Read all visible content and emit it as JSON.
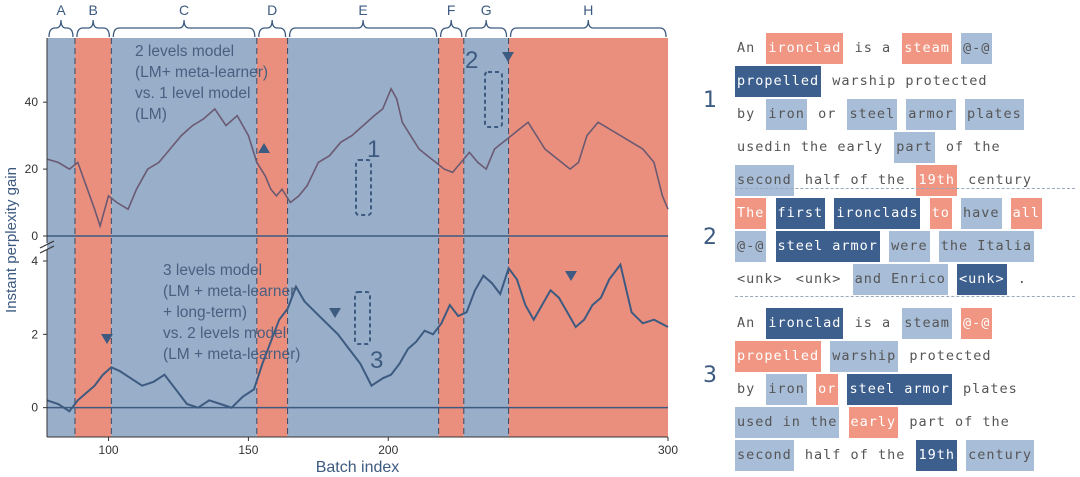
{
  "colors": {
    "blue_bg": "#98aec9",
    "red_bg": "#ea8f7e",
    "line": "#3d5a80",
    "text": "#4a5f80",
    "top_line": "#6b5a72"
  },
  "regions": [
    {
      "label": "A",
      "start": 78,
      "end": 88,
      "color": "blue"
    },
    {
      "label": "B",
      "start": 88,
      "end": 101,
      "color": "red"
    },
    {
      "label": "C",
      "start": 101,
      "end": 153,
      "color": "blue"
    },
    {
      "label": "D",
      "start": 153,
      "end": 164,
      "color": "red"
    },
    {
      "label": "E",
      "start": 164,
      "end": 218,
      "color": "blue"
    },
    {
      "label": "F",
      "start": 218,
      "end": 227,
      "color": "red"
    },
    {
      "label": "G",
      "start": 227,
      "end": 243,
      "color": "blue"
    },
    {
      "label": "H",
      "start": 243,
      "end": 300,
      "color": "red"
    }
  ],
  "annotations": {
    "top_text": [
      "2 levels model",
      "(LM+ meta-learner)",
      "vs. 1 level model",
      "(LM)"
    ],
    "bottom_text": [
      "3 levels model",
      "(LM + meta-learner",
      "+ long-term)",
      "vs. 2 levels model",
      "(LM + meta-learner)"
    ],
    "marker_1": "1",
    "marker_2": "2",
    "marker_3": "3"
  },
  "chart_data": {
    "type": "line",
    "xlabel": "Batch index",
    "ylabel": "Instant perplexity gain",
    "x_ticks": [
      "100",
      "150",
      "200",
      "300"
    ],
    "x_tick_values": [
      100,
      150,
      200,
      300
    ],
    "xlim": [
      78,
      300
    ],
    "top_y_ticks": [
      "0",
      "20",
      "40"
    ],
    "bottom_y_ticks": [
      "0",
      "2",
      "4"
    ],
    "series": [
      {
        "panel": "top",
        "ylim": [
          0,
          55
        ],
        "x": [
          78,
          82,
          86,
          89,
          92,
          95,
          97,
          100,
          103,
          107,
          110,
          114,
          118,
          122,
          126,
          130,
          134,
          138,
          142,
          146,
          150,
          153,
          156,
          158,
          160,
          162,
          165,
          168,
          171,
          175,
          179,
          183,
          187,
          191,
          195,
          198,
          201,
          203,
          205,
          208,
          211,
          214,
          217,
          220,
          223,
          226,
          229,
          232,
          235,
          238,
          241,
          244,
          247,
          250,
          253,
          256,
          259,
          262,
          265,
          268,
          271,
          275,
          279,
          283,
          287,
          291,
          295,
          298,
          300
        ],
        "y": [
          23,
          22,
          20,
          22,
          15,
          8,
          3,
          12,
          10,
          8,
          14,
          20,
          22,
          26,
          30,
          33,
          35,
          38,
          33,
          36,
          30,
          22,
          18,
          14,
          12,
          14,
          10,
          12,
          15,
          22,
          24,
          28,
          30,
          33,
          36,
          38,
          44,
          41,
          34,
          30,
          26,
          24,
          22,
          20,
          19,
          22,
          25,
          22,
          20,
          26,
          28,
          30,
          32,
          34,
          30,
          26,
          24,
          22,
          20,
          22,
          30,
          34,
          32,
          30,
          28,
          26,
          22,
          12,
          8
        ]
      },
      {
        "panel": "bottom",
        "ylim": [
          -0.8,
          4.3
        ],
        "x": [
          78,
          82,
          86,
          89,
          92,
          95,
          98,
          101,
          104,
          108,
          112,
          116,
          120,
          124,
          128,
          132,
          136,
          140,
          144,
          148,
          152,
          155,
          158,
          161,
          164,
          167,
          170,
          174,
          178,
          182,
          186,
          190,
          194,
          198,
          201,
          204,
          207,
          210,
          213,
          216,
          219,
          222,
          225,
          228,
          231,
          234,
          237,
          240,
          243,
          246,
          249,
          252,
          255,
          258,
          261,
          264,
          267,
          270,
          273,
          276,
          279,
          283,
          287,
          291,
          295,
          300
        ],
        "y": [
          0.2,
          0.1,
          -0.1,
          0.2,
          0.4,
          0.6,
          0.9,
          1.1,
          1.0,
          0.8,
          0.6,
          0.7,
          0.9,
          0.5,
          0.1,
          0.0,
          0.2,
          0.1,
          0.0,
          0.3,
          0.5,
          1.2,
          1.8,
          2.4,
          2.7,
          3.3,
          2.9,
          2.6,
          2.3,
          2.0,
          1.6,
          1.2,
          0.6,
          0.8,
          0.9,
          1.2,
          1.6,
          1.8,
          2.1,
          2.0,
          2.3,
          2.8,
          2.5,
          2.6,
          3.2,
          3.6,
          3.4,
          3.1,
          3.8,
          3.5,
          2.8,
          2.4,
          2.8,
          3.2,
          3.0,
          2.6,
          2.2,
          2.4,
          2.8,
          3.0,
          3.5,
          3.9,
          2.6,
          2.3,
          2.4,
          2.2
        ]
      }
    ]
  },
  "examples": [
    {
      "number": "1",
      "lines": [
        [
          {
            "t": "An",
            "c": "w"
          },
          {
            "t": "ironclad",
            "c": "r"
          },
          {
            "t": "is a",
            "c": "w"
          },
          {
            "t": "steam",
            "c": "r"
          },
          {
            "t": "@-@",
            "c": "b"
          }
        ],
        [
          {
            "t": "propelled",
            "c": "B"
          },
          {
            "t": "warship protected",
            "c": "w"
          }
        ],
        [
          {
            "t": "by",
            "c": "w"
          },
          {
            "t": "iron",
            "c": "b"
          },
          {
            "t": "or",
            "c": "w"
          },
          {
            "t": "steel",
            "c": "b"
          },
          {
            "t": "armor",
            "c": "b"
          },
          {
            "t": "plates",
            "c": "b"
          }
        ],
        [
          {
            "t": "usedin the early",
            "c": "w"
          },
          {
            "t": "part",
            "c": "b"
          },
          {
            "t": "of the",
            "c": "w"
          }
        ],
        [
          {
            "t": "second",
            "c": "b"
          },
          {
            "t": "half of the",
            "c": "w"
          },
          {
            "t": "19th",
            "c": "r"
          },
          {
            "t": "century",
            "c": "w"
          }
        ]
      ]
    },
    {
      "number": "2",
      "lines": [
        [
          {
            "t": "The",
            "c": "r"
          },
          {
            "t": "first",
            "c": "B"
          },
          {
            "t": "ironclads",
            "c": "B"
          },
          {
            "t": "to",
            "c": "r"
          },
          {
            "t": "have",
            "c": "b"
          },
          {
            "t": "all",
            "c": "r"
          }
        ],
        [
          {
            "t": "@-@",
            "c": "b"
          },
          {
            "t": "steel armor",
            "c": "B"
          },
          {
            "t": "were",
            "c": "b"
          },
          {
            "t": "the Italia",
            "c": "b"
          }
        ],
        [
          {
            "t": "<unk>",
            "c": "w"
          },
          {
            "t": "<unk>",
            "c": "w"
          },
          {
            "t": "and Enrico",
            "c": "b"
          },
          {
            "t": "<unk>",
            "c": "B"
          },
          {
            "t": ".",
            "c": "w"
          }
        ]
      ]
    },
    {
      "number": "3",
      "lines": [
        [
          {
            "t": "An",
            "c": "w"
          },
          {
            "t": "ironclad",
            "c": "B"
          },
          {
            "t": "is a",
            "c": "w"
          },
          {
            "t": "steam",
            "c": "b"
          },
          {
            "t": "@-@",
            "c": "r"
          }
        ],
        [
          {
            "t": "propelled",
            "c": "r"
          },
          {
            "t": "warship",
            "c": "b"
          },
          {
            "t": "protected",
            "c": "w"
          }
        ],
        [
          {
            "t": "by",
            "c": "w"
          },
          {
            "t": "iron",
            "c": "b"
          },
          {
            "t": "or",
            "c": "r"
          },
          {
            "t": "steel armor",
            "c": "B"
          },
          {
            "t": "plates",
            "c": "w"
          }
        ],
        [
          {
            "t": "used in the",
            "c": "b"
          },
          {
            "t": "early",
            "c": "r"
          },
          {
            "t": "part of the",
            "c": "w"
          }
        ],
        [
          {
            "t": "second",
            "c": "b"
          },
          {
            "t": "half of the",
            "c": "w"
          },
          {
            "t": "19th",
            "c": "B"
          },
          {
            "t": "century",
            "c": "b"
          }
        ]
      ]
    }
  ]
}
